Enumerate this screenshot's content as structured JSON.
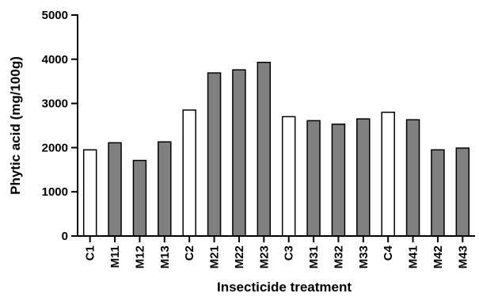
{
  "chart_data": {
    "type": "bar",
    "title": "",
    "xlabel": "Insecticide treatment",
    "ylabel": "Phytic acid (mg/100g)",
    "categories": [
      "C1",
      "M11",
      "M12",
      "M13",
      "C2",
      "M21",
      "M22",
      "M23",
      "C3",
      "M31",
      "M32",
      "M33",
      "C4",
      "M41",
      "M42",
      "M43"
    ],
    "values": [
      1950,
      2110,
      1710,
      2130,
      2850,
      3690,
      3760,
      3930,
      2700,
      2610,
      2530,
      2650,
      2800,
      2630,
      1950,
      1990
    ],
    "bar_fills": [
      "#ffffff",
      "#808080",
      "#808080",
      "#808080",
      "#ffffff",
      "#808080",
      "#808080",
      "#808080",
      "#ffffff",
      "#808080",
      "#808080",
      "#808080",
      "#ffffff",
      "#808080",
      "#808080",
      "#808080"
    ],
    "ylim": [
      0,
      5000
    ],
    "yticks": [
      0,
      1000,
      2000,
      3000,
      4000,
      5000
    ],
    "grid": false,
    "legend": "none"
  }
}
